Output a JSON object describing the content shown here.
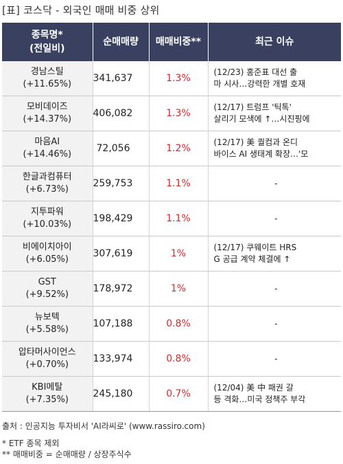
{
  "title": "[표] 코스닥 - 외국인 매매 비중 상위",
  "headers": {
    "name_line1": "종목명*",
    "name_line2": "(전일비)",
    "volume": "순매매량",
    "ratio": "매매비중**",
    "issue": "최근 이슈"
  },
  "rows": [
    {
      "name": "경남스틸",
      "change": "(+11.65%)",
      "volume": "341,637",
      "ratio": "1.3%",
      "issue1": "(12/23) 홍준표 대선 출",
      "issue2": "마 시사…강력한 개별 호재"
    },
    {
      "name": "모비데이즈",
      "change": "(+14.37%)",
      "volume": "406,082",
      "ratio": "1.3%",
      "issue1": "(12/17) 트럼프 '틱톡'",
      "issue2": "살리기 모색에 ↑…시진핑에"
    },
    {
      "name": "마음AI",
      "change": "(+14.46%)",
      "volume": "72,056",
      "ratio": "1.2%",
      "issue1": "(12/17) 美 퀄컴과 온디",
      "issue2": "바이스 AI 생태계 확장…'모"
    },
    {
      "name": "한글과컴퓨터",
      "change": "(+6.73%)",
      "volume": "259,753",
      "ratio": "1.1%",
      "issue1": "-",
      "issue2": ""
    },
    {
      "name": "지투파워",
      "change": "(+10.03%)",
      "volume": "198,429",
      "ratio": "1.1%",
      "issue1": "-",
      "issue2": ""
    },
    {
      "name": "비에이치아이",
      "change": "(+6.05%)",
      "volume": "307,619",
      "ratio": "1%",
      "issue1": "(12/17) 쿠웨이트 HRS",
      "issue2": "G 공급 계약 체결에 ↑"
    },
    {
      "name": "GST",
      "change": "(+9.52%)",
      "volume": "178,972",
      "ratio": "1%",
      "issue1": "-",
      "issue2": ""
    },
    {
      "name": "뉴보텍",
      "change": "(+5.58%)",
      "volume": "107,188",
      "ratio": "0.8%",
      "issue1": "-",
      "issue2": ""
    },
    {
      "name": "압타머사이언스",
      "change": "(+0.70%)",
      "volume": "133,974",
      "ratio": "0.8%",
      "issue1": "-",
      "issue2": ""
    },
    {
      "name": "KBI메탈",
      "change": "(+7.35%)",
      "volume": "245,180",
      "ratio": "0.7%",
      "issue1": "(12/04) 美 中 패권 갈",
      "issue2": "등 격화…미국 정책주 부각"
    }
  ],
  "footer": {
    "source": "출처 : 인공지능 투자비서 'AI라씨로' (www.rassiro.com)",
    "note1": "* ETF 종목 제외",
    "note2": "** 매매비중 = 순매매량 / 상장주식수"
  }
}
